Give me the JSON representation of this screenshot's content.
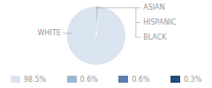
{
  "chart_data": {
    "type": "pie",
    "categories": [
      "WHITE",
      "ASIAN",
      "HISPANIC",
      "BLACK"
    ],
    "values": [
      98.5,
      0.6,
      0.6,
      0.3
    ],
    "value_labels": [
      "98.5%",
      "0.6%",
      "0.6%",
      "0.3%"
    ],
    "colors": [
      "#d9e4f0",
      "#9db8d2",
      "#5a7fa8",
      "#1f4e79"
    ],
    "legend": "bottom"
  }
}
